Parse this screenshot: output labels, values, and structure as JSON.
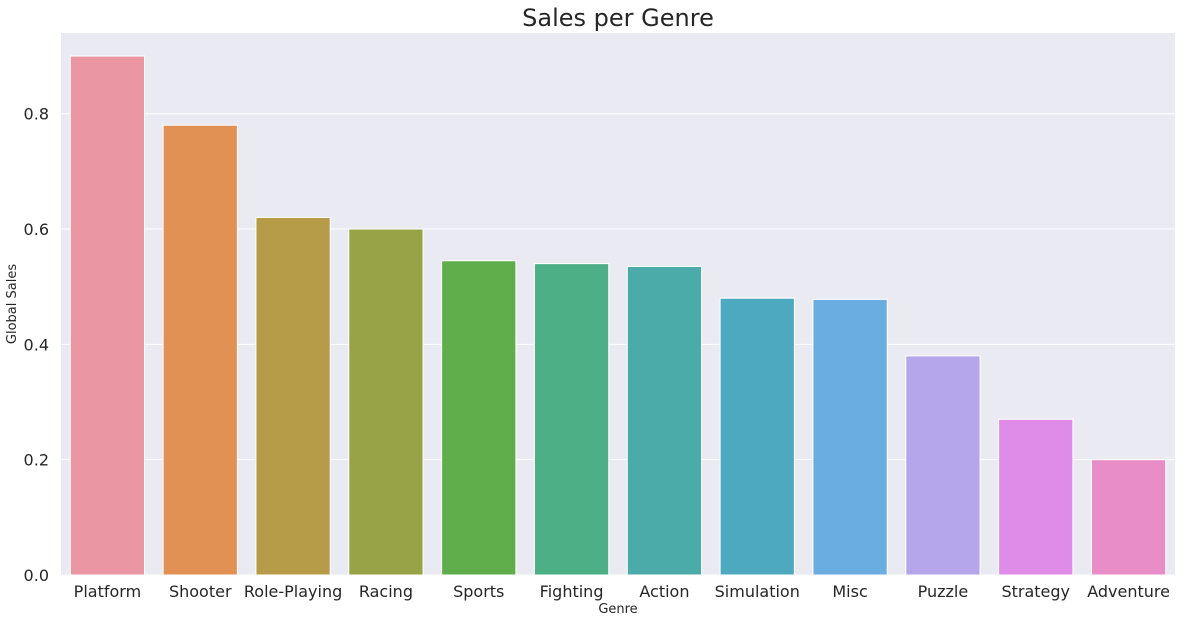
{
  "chart_data": {
    "type": "bar",
    "title": "Sales per Genre",
    "xlabel": "Genre",
    "ylabel": "Global Sales",
    "categories": [
      "Platform",
      "Shooter",
      "Role-Playing",
      "Racing",
      "Sports",
      "Fighting",
      "Action",
      "Simulation",
      "Misc",
      "Puzzle",
      "Strategy",
      "Adventure"
    ],
    "values": [
      0.9,
      0.78,
      0.62,
      0.6,
      0.545,
      0.54,
      0.535,
      0.48,
      0.478,
      0.38,
      0.27,
      0.2
    ],
    "colors": [
      "#ea96a3",
      "#e19153",
      "#b69c48",
      "#98a246",
      "#5fad4b",
      "#4daf86",
      "#4baba9",
      "#4da9c0",
      "#6aade1",
      "#b5a6eb",
      "#de8ce8",
      "#e88dc6"
    ],
    "ylim": [
      0,
      0.94
    ],
    "yticks": [
      0.0,
      0.2,
      0.4,
      0.6,
      0.8
    ],
    "ytick_labels": [
      "0.0",
      "0.2",
      "0.4",
      "0.6",
      "0.8"
    ],
    "grid": true,
    "legend": "none"
  }
}
